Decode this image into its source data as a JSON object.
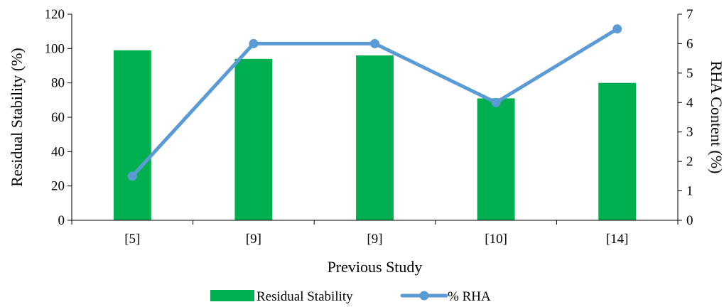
{
  "chart_data": {
    "type": "bar",
    "categories": [
      "[5]",
      "[9]",
      "[9]",
      "[10]",
      "[14]"
    ],
    "xlabel": "Previous Study",
    "ylabel": "Residual Stability (%)",
    "y2label": "RHA Content (%)",
    "ylim": [
      0,
      120
    ],
    "yticks": [
      "0",
      "20",
      "40",
      "60",
      "80",
      "100",
      "120"
    ],
    "y2lim": [
      0,
      7
    ],
    "y2ticks": [
      "0",
      "1",
      "2",
      "3",
      "4",
      "5",
      "6",
      "7"
    ],
    "grid": false,
    "legend_position": "bottom",
    "series": [
      {
        "name": "Residual Stability",
        "type": "bar",
        "axis": "left",
        "color": "#00b050",
        "values": [
          99,
          94,
          96,
          71,
          80
        ]
      },
      {
        "name": "% RHA",
        "type": "line",
        "axis": "right",
        "color": "#5b9bd5",
        "marker": "circle",
        "values": [
          1.5,
          6,
          6,
          4,
          6.5
        ]
      }
    ]
  }
}
